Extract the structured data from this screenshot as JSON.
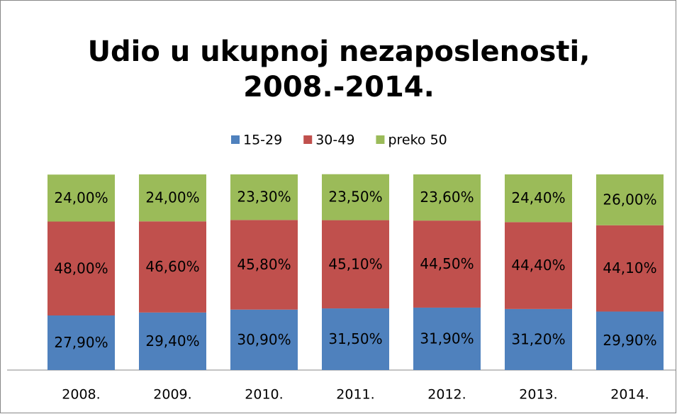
{
  "chart_data": {
    "type": "stacked_bar",
    "title": [
      "Udio u ukupnoj nezaposlenosti,",
      "2008.-2014."
    ],
    "categories": [
      "2008.",
      "2009.",
      "2010.",
      "2011.",
      "2012.",
      "2013.",
      "2014."
    ],
    "series": [
      {
        "name": "15-29",
        "color": "#4f81bd",
        "values": [
          27.9,
          29.4,
          30.9,
          31.5,
          31.9,
          31.2,
          29.9
        ],
        "value_labels": [
          "27,90%",
          "29,40%",
          "30,90%",
          "31,50%",
          "31,90%",
          "31,20%",
          "29,90%"
        ]
      },
      {
        "name": "30-49",
        "color": "#c0504d",
        "values": [
          48.0,
          46.6,
          45.8,
          45.1,
          44.5,
          44.4,
          44.1
        ],
        "value_labels": [
          "48,00%",
          "46,60%",
          "45,80%",
          "45,10%",
          "44,50%",
          "44,40%",
          "44,10%"
        ]
      },
      {
        "name": "preko 50",
        "color": "#9bbb59",
        "values": [
          24.0,
          24.0,
          23.3,
          23.5,
          23.6,
          24.4,
          26.0
        ],
        "value_labels": [
          "24,00%",
          "24,00%",
          "23,30%",
          "23,50%",
          "23,60%",
          "24,40%",
          "26,00%"
        ]
      }
    ],
    "ylim": [
      0,
      100
    ],
    "legend": "top"
  }
}
